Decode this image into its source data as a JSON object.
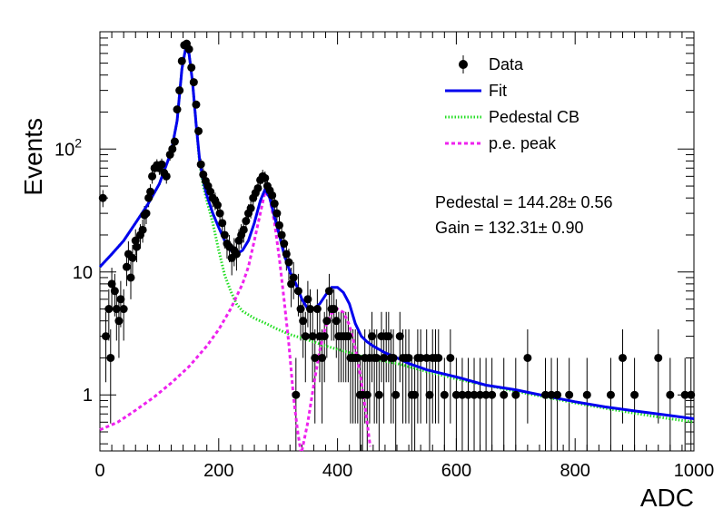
{
  "chart_data": {
    "type": "scatter",
    "xlabel": "ADC",
    "ylabel": "Events",
    "xlim": [
      0,
      1000
    ],
    "ylim": [
      0.35,
      900
    ],
    "yscale": "log",
    "grid": false,
    "legend_position": "top-right",
    "x_ticks": [
      {
        "value": 0,
        "label": "0"
      },
      {
        "value": 200,
        "label": "200"
      },
      {
        "value": 400,
        "label": "400"
      },
      {
        "value": 600,
        "label": "600"
      },
      {
        "value": 800,
        "label": "800"
      },
      {
        "value": 1000,
        "label": "1000"
      }
    ],
    "y_ticks": [
      {
        "value": 1,
        "label": "1"
      },
      {
        "value": 10,
        "label": "10"
      },
      {
        "value": 100,
        "label": "10",
        "sup": "2"
      }
    ],
    "legend": [
      {
        "label": "Data",
        "style": "marker",
        "color": "#000000"
      },
      {
        "label": "Fit",
        "style": "solid",
        "color": "#0000ee"
      },
      {
        "label": "Pedestal CB",
        "style": "dotted",
        "color": "#22dd22"
      },
      {
        "label": "p.e. peak",
        "style": "dashed",
        "color": "#ee22ee"
      }
    ],
    "annotations": [
      {
        "text": "Pedestal = 144.28± 0.56"
      },
      {
        "text": "Gain = 132.31± 0.90"
      }
    ],
    "series": [
      {
        "name": "Data",
        "kind": "points",
        "color": "#000000",
        "points": [
          [
            5,
            40
          ],
          [
            10,
            3
          ],
          [
            15,
            5
          ],
          [
            18,
            2
          ],
          [
            20,
            8
          ],
          [
            25,
            7
          ],
          [
            28,
            5
          ],
          [
            32,
            4
          ],
          [
            35,
            6
          ],
          [
            40,
            5
          ],
          [
            45,
            11
          ],
          [
            48,
            14
          ],
          [
            52,
            9
          ],
          [
            55,
            13
          ],
          [
            60,
            18
          ],
          [
            62,
            16
          ],
          [
            68,
            20
          ],
          [
            72,
            22
          ],
          [
            75,
            29
          ],
          [
            78,
            30
          ],
          [
            82,
            40
          ],
          [
            85,
            45
          ],
          [
            88,
            60
          ],
          [
            92,
            70
          ],
          [
            96,
            74
          ],
          [
            100,
            70
          ],
          [
            104,
            75
          ],
          [
            108,
            64
          ],
          [
            112,
            60
          ],
          [
            118,
            90
          ],
          [
            122,
            100
          ],
          [
            126,
            115
          ],
          [
            130,
            210
          ],
          [
            134,
            300
          ],
          [
            138,
            520
          ],
          [
            142,
            700
          ],
          [
            146,
            720
          ],
          [
            150,
            650
          ],
          [
            154,
            460
          ],
          [
            158,
            350
          ],
          [
            162,
            230
          ],
          [
            166,
            140
          ],
          [
            170,
            75
          ],
          [
            174,
            62
          ],
          [
            178,
            55
          ],
          [
            182,
            50
          ],
          [
            186,
            45
          ],
          [
            190,
            40
          ],
          [
            194,
            38
          ],
          [
            198,
            35
          ],
          [
            202,
            30
          ],
          [
            206,
            25
          ],
          [
            210,
            20
          ],
          [
            214,
            17
          ],
          [
            218,
            16
          ],
          [
            222,
            13
          ],
          [
            226,
            15
          ],
          [
            230,
            14
          ],
          [
            234,
            18
          ],
          [
            238,
            20
          ],
          [
            242,
            22
          ],
          [
            246,
            26
          ],
          [
            250,
            30
          ],
          [
            254,
            33
          ],
          [
            258,
            40
          ],
          [
            262,
            44
          ],
          [
            266,
            48
          ],
          [
            270,
            56
          ],
          [
            274,
            60
          ],
          [
            278,
            58
          ],
          [
            282,
            50
          ],
          [
            286,
            46
          ],
          [
            290,
            42
          ],
          [
            294,
            36
          ],
          [
            298,
            30
          ],
          [
            302,
            24
          ],
          [
            306,
            20
          ],
          [
            310,
            17
          ],
          [
            314,
            14
          ],
          [
            318,
            12
          ],
          [
            322,
            8
          ],
          [
            326,
            9
          ],
          [
            330,
            1
          ],
          [
            334,
            7
          ],
          [
            338,
            5
          ],
          [
            342,
            4
          ],
          [
            346,
            3
          ],
          [
            350,
            6
          ],
          [
            354,
            5
          ],
          [
            358,
            3
          ],
          [
            362,
            2
          ],
          [
            366,
            5
          ],
          [
            370,
            3
          ],
          [
            374,
            2
          ],
          [
            378,
            3
          ],
          [
            382,
            4
          ],
          [
            386,
            7
          ],
          [
            390,
            5
          ],
          [
            394,
            5
          ],
          [
            398,
            4
          ],
          [
            402,
            3
          ],
          [
            406,
            3
          ],
          [
            410,
            3
          ],
          [
            414,
            3
          ],
          [
            418,
            3
          ],
          [
            422,
            2
          ],
          [
            426,
            2
          ],
          [
            430,
            2
          ],
          [
            434,
            2
          ],
          [
            438,
            1
          ],
          [
            442,
            1
          ],
          [
            446,
            2
          ],
          [
            450,
            1
          ],
          [
            454,
            2
          ],
          [
            458,
            3
          ],
          [
            462,
            2
          ],
          [
            466,
            2
          ],
          [
            470,
            1
          ],
          [
            474,
            3
          ],
          [
            478,
            2
          ],
          [
            482,
            3
          ],
          [
            486,
            3
          ],
          [
            490,
            2
          ],
          [
            494,
            2
          ],
          [
            498,
            1
          ],
          [
            505,
            3
          ],
          [
            510,
            2
          ],
          [
            515,
            2
          ],
          [
            520,
            2
          ],
          [
            525,
            1
          ],
          [
            530,
            1
          ],
          [
            535,
            2
          ],
          [
            540,
            2
          ],
          [
            550,
            2
          ],
          [
            555,
            1
          ],
          [
            560,
            2
          ],
          [
            565,
            2
          ],
          [
            570,
            2
          ],
          [
            580,
            1
          ],
          [
            590,
            2
          ],
          [
            600,
            1
          ],
          [
            610,
            1
          ],
          [
            620,
            1
          ],
          [
            630,
            1
          ],
          [
            640,
            1
          ],
          [
            650,
            1
          ],
          [
            660,
            1
          ],
          [
            680,
            1
          ],
          [
            700,
            1
          ],
          [
            720,
            2
          ],
          [
            750,
            1
          ],
          [
            760,
            1
          ],
          [
            770,
            1
          ],
          [
            790,
            1
          ],
          [
            820,
            1
          ],
          [
            860,
            1
          ],
          [
            880,
            2
          ],
          [
            900,
            1
          ],
          [
            940,
            2
          ],
          [
            960,
            1
          ],
          [
            985,
            1
          ],
          [
            995,
            1
          ]
        ]
      },
      {
        "name": "Fit",
        "kind": "line",
        "color": "#0000ee",
        "points": [
          [
            0,
            11
          ],
          [
            20,
            14
          ],
          [
            40,
            18
          ],
          [
            60,
            25
          ],
          [
            80,
            35
          ],
          [
            100,
            52
          ],
          [
            120,
            95
          ],
          [
            130,
            170
          ],
          [
            138,
            450
          ],
          [
            144,
            650
          ],
          [
            150,
            600
          ],
          [
            156,
            350
          ],
          [
            162,
            160
          ],
          [
            168,
            80
          ],
          [
            174,
            55
          ],
          [
            180,
            42
          ],
          [
            190,
            30
          ],
          [
            200,
            23
          ],
          [
            210,
            18
          ],
          [
            220,
            15
          ],
          [
            230,
            14
          ],
          [
            240,
            15
          ],
          [
            250,
            18
          ],
          [
            260,
            25
          ],
          [
            270,
            38
          ],
          [
            278,
            47
          ],
          [
            286,
            40
          ],
          [
            294,
            28
          ],
          [
            302,
            20
          ],
          [
            310,
            14
          ],
          [
            320,
            10
          ],
          [
            330,
            8
          ],
          [
            340,
            6
          ],
          [
            350,
            5
          ],
          [
            360,
            5
          ],
          [
            370,
            5.5
          ],
          [
            380,
            6.5
          ],
          [
            390,
            7.5
          ],
          [
            400,
            7.5
          ],
          [
            410,
            6.8
          ],
          [
            420,
            5.5
          ],
          [
            430,
            3.8
          ],
          [
            440,
            3.0
          ],
          [
            450,
            2.7
          ],
          [
            460,
            2.5
          ],
          [
            480,
            2.2
          ],
          [
            500,
            2.0
          ],
          [
            520,
            1.8
          ],
          [
            550,
            1.6
          ],
          [
            600,
            1.4
          ],
          [
            650,
            1.2
          ],
          [
            700,
            1.1
          ],
          [
            750,
            0.98
          ],
          [
            800,
            0.88
          ],
          [
            850,
            0.8
          ],
          [
            900,
            0.74
          ],
          [
            950,
            0.69
          ],
          [
            1000,
            0.64
          ]
        ]
      },
      {
        "name": "Pedestal CB",
        "kind": "line",
        "color": "#22dd22",
        "points": [
          [
            0,
            11
          ],
          [
            20,
            14
          ],
          [
            40,
            18
          ],
          [
            60,
            25
          ],
          [
            80,
            35
          ],
          [
            100,
            52
          ],
          [
            120,
            95
          ],
          [
            130,
            170
          ],
          [
            138,
            450
          ],
          [
            144,
            650
          ],
          [
            150,
            600
          ],
          [
            156,
            350
          ],
          [
            162,
            160
          ],
          [
            168,
            75
          ],
          [
            174,
            50
          ],
          [
            180,
            38
          ],
          [
            190,
            25
          ],
          [
            200,
            15
          ],
          [
            210,
            9.5
          ],
          [
            220,
            7
          ],
          [
            230,
            5.5
          ],
          [
            240,
            4.8
          ],
          [
            260,
            4.2
          ],
          [
            280,
            3.8
          ],
          [
            300,
            3.4
          ],
          [
            320,
            3.1
          ],
          [
            340,
            2.9
          ],
          [
            360,
            2.7
          ],
          [
            380,
            2.5
          ],
          [
            400,
            2.35
          ],
          [
            420,
            2.2
          ],
          [
            450,
            2.0
          ],
          [
            500,
            1.8
          ],
          [
            550,
            1.55
          ],
          [
            600,
            1.35
          ],
          [
            650,
            1.2
          ],
          [
            700,
            1.07
          ],
          [
            750,
            0.96
          ],
          [
            800,
            0.86
          ],
          [
            850,
            0.78
          ],
          [
            900,
            0.71
          ],
          [
            950,
            0.65
          ],
          [
            1000,
            0.6
          ]
        ]
      },
      {
        "name": "p.e. peak",
        "kind": "line",
        "color": "#ee22ee",
        "points": [
          [
            0,
            0.52
          ],
          [
            30,
            0.6
          ],
          [
            60,
            0.75
          ],
          [
            90,
            0.95
          ],
          [
            120,
            1.25
          ],
          [
            150,
            1.7
          ],
          [
            180,
            2.5
          ],
          [
            200,
            3.4
          ],
          [
            220,
            5
          ],
          [
            240,
            8
          ],
          [
            250,
            11
          ],
          [
            260,
            18
          ],
          [
            270,
            30
          ],
          [
            278,
            45
          ],
          [
            286,
            40
          ],
          [
            294,
            25
          ],
          [
            302,
            13
          ],
          [
            310,
            6
          ],
          [
            318,
            2.6
          ],
          [
            326,
            0.95
          ],
          [
            333,
            0.5
          ],
          [
            338,
            0.35
          ]
        ]
      },
      {
        "name": "p.e. peak (2nd)",
        "kind": "line",
        "color": "#ee22ee",
        "points": [
          [
            340,
            0.35
          ],
          [
            350,
            0.6
          ],
          [
            360,
            1.2
          ],
          [
            370,
            2.3
          ],
          [
            380,
            3.6
          ],
          [
            390,
            4.6
          ],
          [
            400,
            5
          ],
          [
            410,
            4.7
          ],
          [
            420,
            3.7
          ],
          [
            430,
            2.4
          ],
          [
            440,
            1.3
          ],
          [
            448,
            0.7
          ],
          [
            455,
            0.38
          ]
        ]
      }
    ]
  }
}
